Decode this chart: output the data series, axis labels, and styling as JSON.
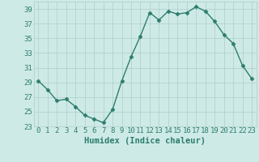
{
  "x": [
    0,
    1,
    2,
    3,
    4,
    5,
    6,
    7,
    8,
    9,
    10,
    11,
    12,
    13,
    14,
    15,
    16,
    17,
    18,
    19,
    20,
    21,
    22,
    23
  ],
  "y": [
    29.2,
    28.0,
    26.5,
    26.7,
    25.7,
    24.5,
    24.0,
    23.5,
    25.3,
    29.2,
    32.5,
    35.3,
    38.5,
    37.5,
    38.7,
    38.3,
    38.5,
    39.3,
    38.7,
    37.3,
    35.5,
    34.3,
    31.3,
    29.5
  ],
  "line_color": "#2d7d6e",
  "marker": "D",
  "marker_size": 2.5,
  "bg_color": "#ceeae7",
  "grid_color": "#b0ccc9",
  "xlabel": "Humidex (Indice chaleur)",
  "ylim": [
    23,
    40
  ],
  "yticks": [
    23,
    25,
    27,
    29,
    31,
    33,
    35,
    37,
    39
  ],
  "xlim": [
    -0.5,
    23.5
  ],
  "xticks": [
    0,
    1,
    2,
    3,
    4,
    5,
    6,
    7,
    8,
    9,
    10,
    11,
    12,
    13,
    14,
    15,
    16,
    17,
    18,
    19,
    20,
    21,
    22,
    23
  ],
  "xlabel_fontsize": 7.5,
  "tick_fontsize": 6.5,
  "line_width": 1.0
}
